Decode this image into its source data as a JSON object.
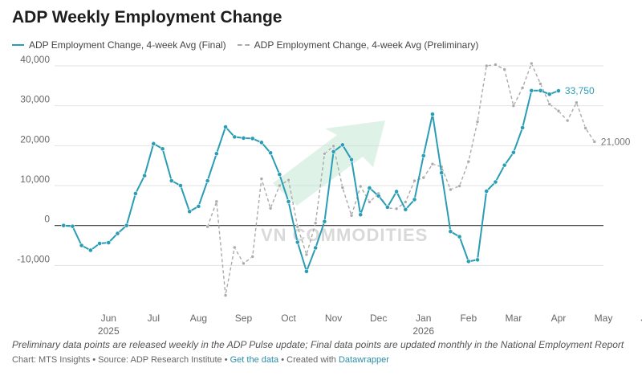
{
  "chart_data": {
    "type": "line",
    "title": "ADP Weekly Employment Change",
    "legend_position": "top-left",
    "grid": true,
    "ylim": [
      -20000,
      40000
    ],
    "y_ticks": [
      -10000,
      0,
      10000,
      20000,
      30000,
      40000
    ],
    "y_tick_labels": [
      "-10,000",
      "0",
      "10,000",
      "20,000",
      "30,000",
      "40,000"
    ],
    "x_tick_labels": [
      {
        "label": "Jun",
        "x": 2,
        "year": "2025"
      },
      {
        "label": "Jul",
        "x": 7
      },
      {
        "label": "Aug",
        "x": 12
      },
      {
        "label": "Sep",
        "x": 17
      },
      {
        "label": "Oct",
        "x": 22
      },
      {
        "label": "Nov",
        "x": 27
      },
      {
        "label": "Dec",
        "x": 32
      },
      {
        "label": "Jan",
        "x": 37,
        "year": "2026"
      },
      {
        "label": "Feb",
        "x": 42
      },
      {
        "label": "Mar",
        "x": 47
      },
      {
        "label": "Apr",
        "x": 52
      },
      {
        "label": "May",
        "x": 57
      },
      {
        "label": "Jun",
        "x": 62
      }
    ],
    "series": [
      {
        "name": "ADP Employment Change, 4-week Avg (Final)",
        "style": "solid",
        "color": "#2a9db5",
        "end_label": "33,750",
        "points": [
          [
            -3,
            0
          ],
          [
            -2,
            -200
          ],
          [
            -1,
            -5000
          ],
          [
            0,
            -6200
          ],
          [
            1,
            -4500
          ],
          [
            2,
            -4300
          ],
          [
            3,
            -2000
          ],
          [
            4,
            0
          ],
          [
            5,
            8000
          ],
          [
            6,
            12500
          ],
          [
            7,
            20500
          ],
          [
            8,
            19200
          ],
          [
            9,
            11200
          ],
          [
            10,
            10000
          ],
          [
            11,
            3500
          ],
          [
            12,
            4800
          ],
          [
            13,
            11200
          ],
          [
            14,
            18000
          ],
          [
            15,
            24700
          ],
          [
            16,
            22200
          ],
          [
            17,
            21900
          ],
          [
            18,
            21800
          ],
          [
            19,
            20800
          ],
          [
            20,
            18200
          ],
          [
            21,
            12800
          ],
          [
            22,
            6000
          ],
          [
            23,
            -4200
          ],
          [
            24,
            -11500
          ],
          [
            25,
            -5600
          ],
          [
            26,
            1000
          ],
          [
            27,
            18500
          ],
          [
            28,
            20200
          ],
          [
            29,
            16500
          ],
          [
            30,
            2700
          ],
          [
            31,
            9400
          ],
          [
            32,
            7400
          ],
          [
            33,
            4600
          ],
          [
            34,
            8500
          ],
          [
            35,
            4000
          ],
          [
            36,
            6500
          ],
          [
            37,
            17500
          ],
          [
            38,
            27900
          ],
          [
            39,
            13200
          ],
          [
            40,
            -1500
          ],
          [
            41,
            -2800
          ],
          [
            42,
            -9000
          ],
          [
            43,
            -8600
          ],
          [
            44,
            8600
          ],
          [
            45,
            10900
          ],
          [
            46,
            15100
          ],
          [
            47,
            18300
          ],
          [
            48,
            24500
          ],
          [
            49,
            33800
          ],
          [
            50,
            33800
          ],
          [
            51,
            32900
          ],
          [
            52,
            33750
          ]
        ]
      },
      {
        "name": "ADP Employment Change, 4-week Avg (Preliminary)",
        "style": "dashed",
        "color": "#aaaaaa",
        "end_label": "21,000",
        "points": [
          [
            13,
            -300
          ],
          [
            14,
            6000
          ],
          [
            15,
            -17500
          ],
          [
            16,
            -5500
          ],
          [
            17,
            -9500
          ],
          [
            18,
            -7800
          ],
          [
            19,
            11700
          ],
          [
            20,
            4300
          ],
          [
            21,
            10000
          ],
          [
            22,
            11400
          ],
          [
            23,
            -300
          ],
          [
            24,
            -7300
          ],
          [
            25,
            600
          ],
          [
            26,
            18000
          ],
          [
            27,
            19900
          ],
          [
            28,
            9500
          ],
          [
            29,
            2500
          ],
          [
            30,
            9800
          ],
          [
            31,
            5900
          ],
          [
            32,
            8000
          ],
          [
            33,
            4400
          ],
          [
            34,
            4200
          ],
          [
            35,
            5900
          ],
          [
            36,
            11200
          ],
          [
            37,
            12000
          ],
          [
            38,
            15400
          ],
          [
            39,
            14700
          ],
          [
            40,
            9000
          ],
          [
            41,
            9900
          ],
          [
            42,
            16000
          ],
          [
            43,
            26000
          ],
          [
            44,
            40000
          ],
          [
            45,
            40300
          ],
          [
            46,
            39100
          ],
          [
            47,
            30000
          ],
          [
            48,
            34500
          ],
          [
            49,
            40600
          ],
          [
            50,
            35500
          ],
          [
            51,
            30400
          ],
          [
            52,
            28700
          ],
          [
            53,
            26300
          ],
          [
            54,
            30800
          ],
          [
            55,
            24400
          ],
          [
            56,
            21000
          ]
        ]
      }
    ]
  },
  "legend": {
    "final_label": "ADP Employment Change, 4-week Avg (Final)",
    "prelim_label": "ADP Employment Change, 4-week Avg (Preliminary)"
  },
  "watermark_text": "VN COMMODITIES",
  "footer": {
    "note": "Preliminary data points are released weekly in the ADP Pulse update; Final data points are updated monthly in the National Employment Report",
    "source_prefix": "Chart: MTS Insights • Source: ADP Research Institute • ",
    "get_data": "Get the data",
    "created_with_prefix": " • Created with ",
    "datawrapper": "Datawrapper"
  }
}
